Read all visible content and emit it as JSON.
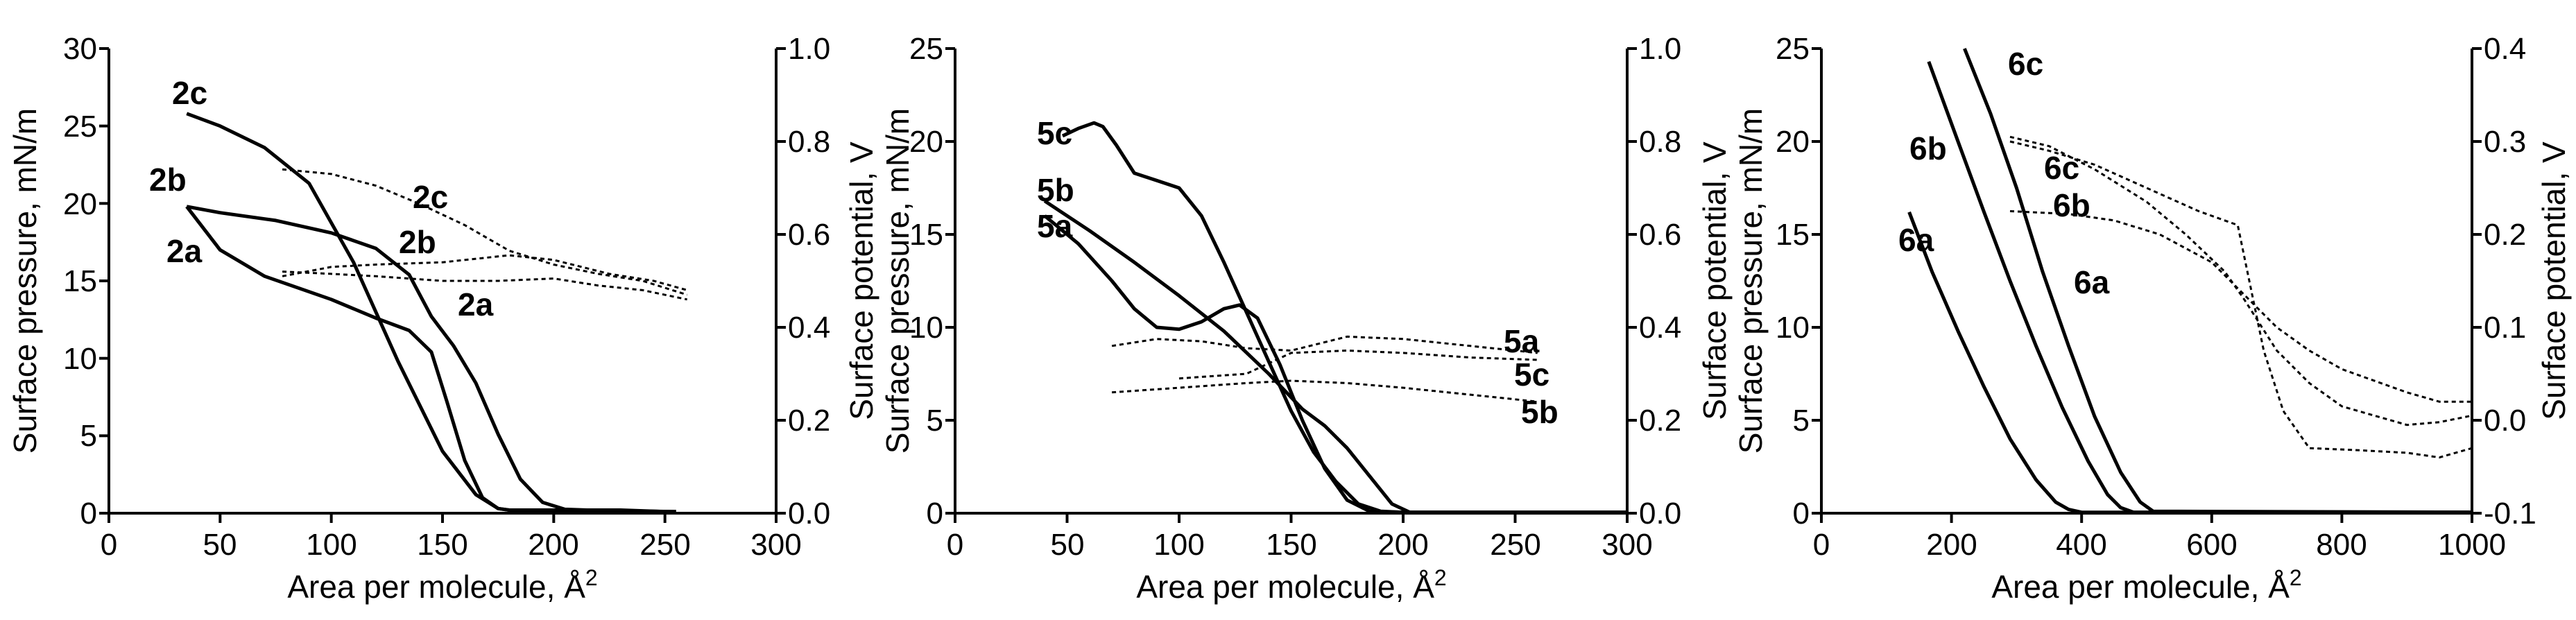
{
  "chart_data": [
    {
      "type": "line",
      "xlabel": "Area per molecule, Å",
      "xlabel_sup": "2",
      "ylabel_left": "Surface pressure, mN/m",
      "ylabel_right": "Surface potential, V",
      "xlim": [
        0,
        300
      ],
      "ylim_left": [
        0,
        30
      ],
      "ylim_right": [
        0,
        1.0
      ],
      "xticks": [
        0,
        50,
        100,
        150,
        200,
        250,
        300
      ],
      "yticks_left": [
        0,
        5,
        10,
        15,
        20,
        25,
        30
      ],
      "yticks_right": [
        0.0,
        0.2,
        0.4,
        0.6,
        0.8,
        1.0
      ],
      "xtick_labels": [
        "0",
        "50",
        "100",
        "150",
        "200",
        "250",
        "300"
      ],
      "ytick_labels_left": [
        "0",
        "5",
        "10",
        "15",
        "20",
        "25",
        "30"
      ],
      "ytick_labels_right": [
        "0.0",
        "0.2",
        "0.4",
        "0.6",
        "0.8",
        "1.0"
      ],
      "pressure_series": [
        {
          "name": "2a",
          "x": [
            35,
            50,
            70,
            100,
            120,
            135,
            145,
            152,
            160,
            168,
            175,
            180,
            190,
            200,
            210,
            230,
            255
          ],
          "y": [
            19.8,
            17.0,
            15.3,
            13.8,
            12.6,
            11.8,
            10.4,
            7.2,
            3.4,
            1.0,
            0.3,
            0.2,
            0.2,
            0.2,
            0.2,
            0.15,
            0.1
          ]
        },
        {
          "name": "2b",
          "x": [
            35,
            50,
            75,
            100,
            120,
            135,
            145,
            155,
            165,
            175,
            185,
            195,
            205,
            215,
            230,
            250
          ],
          "y": [
            19.8,
            19.4,
            18.9,
            18.1,
            17.1,
            15.4,
            12.7,
            10.8,
            8.4,
            5.1,
            2.2,
            0.7,
            0.25,
            0.2,
            0.2,
            0.1
          ]
        },
        {
          "name": "2c",
          "x": [
            35,
            50,
            70,
            90,
            110,
            130,
            150,
            165,
            175,
            180,
            190,
            200,
            220,
            255
          ],
          "y": [
            25.8,
            25.0,
            23.6,
            21.3,
            16.2,
            9.8,
            4.0,
            1.2,
            0.3,
            0.2,
            0.15,
            0.15,
            0.15,
            0.1
          ]
        }
      ],
      "potential_series": [
        {
          "name": "2a",
          "x": [
            78,
            100,
            120,
            150,
            175,
            200,
            220,
            240,
            260
          ],
          "y": [
            0.52,
            0.515,
            0.51,
            0.5,
            0.5,
            0.505,
            0.49,
            0.48,
            0.46
          ]
        },
        {
          "name": "2b",
          "x": [
            78,
            100,
            120,
            150,
            180,
            200,
            225,
            245,
            260
          ],
          "y": [
            0.51,
            0.53,
            0.535,
            0.54,
            0.555,
            0.545,
            0.515,
            0.5,
            0.48
          ]
        },
        {
          "name": "2c",
          "x": [
            78,
            100,
            120,
            140,
            160,
            180,
            200,
            220,
            240,
            260
          ],
          "y": [
            0.74,
            0.73,
            0.705,
            0.665,
            0.62,
            0.565,
            0.535,
            0.515,
            0.5,
            0.47
          ]
        }
      ],
      "labels": [
        "2c",
        "2b",
        "2a",
        "2c",
        "2b",
        "2a"
      ]
    },
    {
      "type": "line",
      "xlabel": "Area per molecule, Å",
      "xlabel_sup": "2",
      "ylabel_left": "Surface pressure, mN/m",
      "ylabel_right": "Surface potential, V",
      "xlim": [
        0,
        300
      ],
      "ylim_left": [
        0,
        25
      ],
      "ylim_right": [
        0,
        1.0
      ],
      "xticks": [
        0,
        50,
        100,
        150,
        200,
        250,
        300
      ],
      "yticks_left": [
        0,
        5,
        10,
        15,
        20,
        25
      ],
      "yticks_right": [
        0.0,
        0.2,
        0.4,
        0.6,
        0.8,
        1.0
      ],
      "xtick_labels": [
        "0",
        "50",
        "100",
        "150",
        "200",
        "250",
        "300"
      ],
      "ytick_labels_left": [
        "0",
        "5",
        "10",
        "15",
        "20",
        "25"
      ],
      "ytick_labels_right": [
        "0.0",
        "0.2",
        "0.4",
        "0.6",
        "0.8",
        "1.0"
      ],
      "pressure_series": [
        {
          "name": "5a",
          "x": [
            40,
            55,
            70,
            80,
            90,
            100,
            110,
            120,
            127,
            135,
            145,
            155,
            165,
            175,
            185,
            200,
            230,
            300
          ],
          "y": [
            16.0,
            14.5,
            12.5,
            11.0,
            10.0,
            9.9,
            10.3,
            11.0,
            11.2,
            10.5,
            8.0,
            5.0,
            2.4,
            0.7,
            0.1,
            0.05,
            0.05,
            0.05
          ]
        },
        {
          "name": "5b",
          "x": [
            40,
            60,
            80,
            100,
            120,
            140,
            155,
            165,
            175,
            185,
            195,
            203,
            230,
            300
          ],
          "y": [
            16.8,
            15.2,
            13.5,
            11.7,
            9.8,
            7.5,
            5.6,
            4.7,
            3.5,
            2.0,
            0.5,
            0.05,
            0.05,
            0.05
          ]
        },
        {
          "name": "5c",
          "x": [
            48,
            55,
            62,
            66,
            72,
            80,
            90,
            100,
            110,
            120,
            135,
            150,
            160,
            170,
            180,
            190,
            200,
            300
          ],
          "y": [
            20.3,
            20.7,
            21.0,
            20.8,
            19.8,
            18.3,
            17.9,
            17.5,
            16.0,
            13.5,
            9.5,
            5.5,
            3.3,
            1.7,
            0.5,
            0.1,
            0.05,
            0.05
          ]
        }
      ],
      "potential_series": [
        {
          "name": "5a",
          "x": [
            70,
            90,
            110,
            130,
            150,
            175,
            200,
            230,
            260
          ],
          "y": [
            0.36,
            0.375,
            0.37,
            0.355,
            0.35,
            0.38,
            0.375,
            0.36,
            0.345
          ]
        },
        {
          "name": "5b",
          "x": [
            70,
            100,
            130,
            150,
            175,
            200,
            230,
            260
          ],
          "y": [
            0.26,
            0.27,
            0.28,
            0.285,
            0.28,
            0.27,
            0.255,
            0.24
          ]
        },
        {
          "name": "5c",
          "x": [
            100,
            130,
            150,
            175,
            200,
            230,
            260
          ],
          "y": [
            0.29,
            0.3,
            0.345,
            0.35,
            0.345,
            0.335,
            0.33
          ]
        }
      ],
      "labels": [
        "5c",
        "5b",
        "5a",
        "5a",
        "5c",
        "5b"
      ]
    },
    {
      "type": "line",
      "xlabel": "Area per molecule, Å",
      "xlabel_sup": "2",
      "ylabel_left": "Surface pressure, mN/m",
      "ylabel_right": "Surface potential, V",
      "xlim": [
        0,
        1000
      ],
      "ylim_left": [
        0,
        25
      ],
      "ylim_right": [
        -0.1,
        0.4
      ],
      "xticks": [
        0,
        200,
        400,
        600,
        800,
        1000
      ],
      "yticks_left": [
        0,
        5,
        10,
        15,
        20,
        25
      ],
      "yticks_right": [
        -0.1,
        0.0,
        0.1,
        0.2,
        0.3,
        0.4
      ],
      "xtick_labels": [
        "0",
        "200",
        "400",
        "600",
        "800",
        "1000"
      ],
      "ytick_labels_left": [
        "0",
        "5",
        "10",
        "15",
        "20",
        "25"
      ],
      "ytick_labels_right": [
        "-0.1",
        "0.0",
        "0.1",
        "0.2",
        "0.3",
        "0.4"
      ],
      "pressure_series": [
        {
          "name": "6a",
          "x": [
            135,
            170,
            210,
            250,
            290,
            330,
            360,
            380,
            400,
            1000
          ],
          "y": [
            16.2,
            13.0,
            9.8,
            6.8,
            4.0,
            1.8,
            0.6,
            0.2,
            0.05,
            0.05
          ]
        },
        {
          "name": "6b",
          "x": [
            165,
            210,
            250,
            290,
            330,
            370,
            410,
            440,
            460,
            480,
            1000
          ],
          "y": [
            24.3,
            20.0,
            16.2,
            12.5,
            9.0,
            5.7,
            2.8,
            1.0,
            0.3,
            0.05,
            0.05
          ]
        },
        {
          "name": "6c",
          "x": [
            220,
            260,
            300,
            340,
            380,
            420,
            460,
            490,
            510,
            1000
          ],
          "y": [
            25.0,
            21.5,
            17.5,
            13.0,
            9.0,
            5.2,
            2.2,
            0.6,
            0.1,
            0.05
          ]
        }
      ],
      "potential_series": [
        {
          "name": "6a",
          "x": [
            290,
            380,
            450,
            520,
            600,
            650,
            700,
            750,
            800,
            900,
            950,
            1000
          ],
          "y": [
            0.225,
            0.222,
            0.215,
            0.2,
            0.17,
            0.135,
            0.1,
            0.075,
            0.055,
            0.03,
            0.02,
            0.02
          ]
        },
        {
          "name": "6b",
          "x": [
            290,
            350,
            420,
            500,
            580,
            640,
            680,
            710,
            750,
            820,
            900,
            950,
            1000
          ],
          "y": [
            0.3,
            0.29,
            0.275,
            0.25,
            0.225,
            0.21,
            0.075,
            0.01,
            -0.03,
            -0.032,
            -0.035,
            -0.04,
            -0.03
          ]
        },
        {
          "name": "6c",
          "x": [
            290,
            350,
            420,
            500,
            560,
            620,
            650,
            700,
            750,
            800,
            900,
            950,
            1000
          ],
          "y": [
            0.305,
            0.295,
            0.27,
            0.235,
            0.2,
            0.16,
            0.13,
            0.075,
            0.04,
            0.015,
            -0.005,
            -0.002,
            0.005
          ]
        }
      ],
      "labels": [
        "6c",
        "6b",
        "6a",
        "6c",
        "6b",
        "6a"
      ]
    }
  ]
}
